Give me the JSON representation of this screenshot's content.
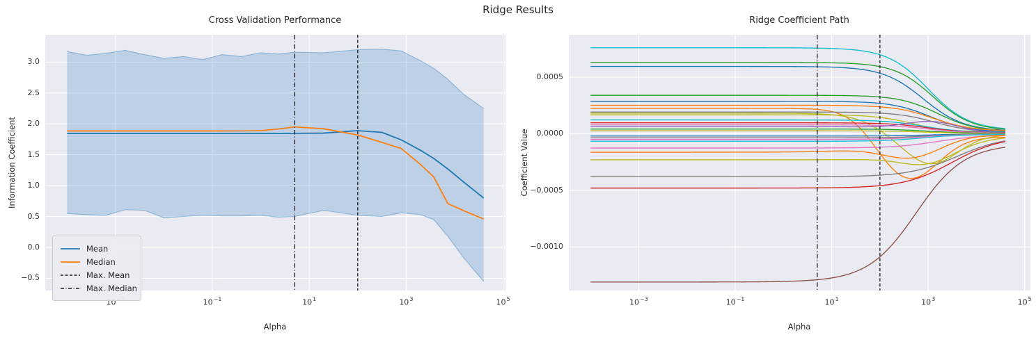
{
  "figure": {
    "title": "Ridge Results"
  },
  "style": {
    "axes_bg": "#eaeaf2",
    "grid_color": "#ffffff",
    "text_color": "#262626",
    "tick_color": "#333333",
    "vline_color": "#1a1a1a"
  },
  "chart_data": [
    {
      "type": "line",
      "title": "Cross Validation Performance",
      "xlabel": "Alpha",
      "ylabel": "Information Coefficient",
      "xscale": "log",
      "grid": true,
      "legend_position": "lower left",
      "x_tick_exponents": [
        -3,
        -1,
        1,
        3,
        5
      ],
      "y_ticks": [
        3.0,
        2.5,
        2.0,
        1.5,
        1.0,
        0.5,
        0.0,
        -0.5
      ],
      "y_tick_decimals": 1,
      "xlim_exp": [
        -4.45,
        5.05
      ],
      "ylim": [
        -0.697,
        3.442
      ],
      "x_exp": [
        -4,
        -3.6,
        -3.2,
        -2.8,
        -2.4,
        -2,
        -1.6,
        -1.2,
        -0.8,
        -0.4,
        0,
        0.35,
        0.7,
        1.3,
        2,
        2.5,
        2.9,
        3.3,
        3.57,
        3.86,
        4.2,
        4.6
      ],
      "series": [
        {
          "name": "Mean",
          "color": "#1f77b4",
          "values": [
            1.845,
            1.845,
            1.845,
            1.845,
            1.845,
            1.845,
            1.845,
            1.845,
            1.845,
            1.845,
            1.845,
            1.845,
            1.846,
            1.85,
            1.89,
            1.862,
            1.74,
            1.57,
            1.44,
            1.27,
            1.05,
            0.8
          ]
        },
        {
          "name": "Median",
          "color": "#ff7f0e",
          "values": [
            1.885,
            1.885,
            1.885,
            1.885,
            1.885,
            1.885,
            1.885,
            1.885,
            1.885,
            1.886,
            1.89,
            1.915,
            1.95,
            1.92,
            1.82,
            1.7,
            1.6,
            1.34,
            1.14,
            0.71,
            0.59,
            0.46
          ]
        }
      ],
      "band": {
        "name": "mean-std-band",
        "fill": "rgba(31,119,180,0.22)",
        "edge": "rgba(31,119,180,0.38)",
        "upper": [
          3.17,
          3.11,
          3.14,
          3.19,
          3.12,
          3.06,
          3.09,
          3.04,
          3.12,
          3.09,
          3.15,
          3.13,
          3.16,
          3.15,
          3.2,
          3.21,
          3.18,
          3.02,
          2.9,
          2.72,
          2.47,
          2.25
        ],
        "lower": [
          0.55,
          0.53,
          0.52,
          0.61,
          0.6,
          0.48,
          0.5,
          0.52,
          0.51,
          0.51,
          0.52,
          0.49,
          0.5,
          0.6,
          0.52,
          0.5,
          0.56,
          0.53,
          0.45,
          0.18,
          -0.18,
          -0.55
        ]
      },
      "vlines": [
        {
          "name": "Max. Mean",
          "style": "dashed",
          "exp": 2.0,
          "alpha_value": 100
        },
        {
          "name": "Max. Median",
          "style": "dashdot",
          "exp": 0.7,
          "alpha_value": 5
        }
      ],
      "legend": {
        "items": [
          {
            "label": "Mean",
            "color": "#1f77b4",
            "dash": "solid"
          },
          {
            "label": "Median",
            "color": "#ff7f0e",
            "dash": "solid"
          },
          {
            "label": "Max. Mean",
            "color": "#1a1a1a",
            "dash": "dashed"
          },
          {
            "label": "Max. Median",
            "color": "#1a1a1a",
            "dash": "dashdot"
          }
        ]
      }
    },
    {
      "type": "line",
      "title": "Ridge Coefficient Path",
      "xlabel": "Alpha",
      "ylabel": "Coefficient Value",
      "xscale": "log",
      "grid": true,
      "x_tick_exponents": [
        -3,
        -1,
        1,
        3,
        5
      ],
      "y_ticks": [
        0.0005,
        0.0,
        -0.0005,
        -0.001
      ],
      "y_tick_decimals": 4,
      "xlim_exp": [
        -4.45,
        5.12
      ],
      "ylim": [
        -0.001385,
        0.000875
      ],
      "x_range_exp": [
        -4,
        4.6
      ],
      "vlines": [
        {
          "name": "Max. Mean",
          "style": "dashed",
          "exp": 2.0,
          "alpha_value": 100
        },
        {
          "name": "Max. Median",
          "style": "dashdot",
          "exp": 0.7,
          "alpha_value": 5
        }
      ],
      "coef_paths": [
        {
          "color": "#17becf",
          "start": 0.00076,
          "end": 3e-05,
          "bend": 3.0,
          "w": 0.42
        },
        {
          "color": "#2ca02c",
          "start": 0.00063,
          "end": 2.7e-05,
          "bend": 3.1,
          "w": 0.4
        },
        {
          "color": "#1f77b4",
          "start": 0.000595,
          "end": 2.2e-05,
          "bend": 2.9,
          "w": 0.42
        },
        {
          "color": "#2ca02c",
          "start": 0.00034,
          "end": 1.8e-05,
          "bend": 3.2,
          "w": 0.4
        },
        {
          "color": "#1f77b4",
          "start": 0.000287,
          "end": 1.5e-05,
          "bend": 3.05,
          "w": 0.4
        },
        {
          "color": "#ff7f0e",
          "start": 0.000252,
          "end": 2.4e-05,
          "bend": 3.1,
          "w": 0.4
        },
        {
          "color": "#ff7f0e",
          "start": 0.000224,
          "end": -3e-05,
          "bend": 1.8,
          "w": 0.3,
          "dip": {
            "amp": -0.00038,
            "center": 2.6,
            "width": 0.6
          }
        },
        {
          "color": "#7f7f7f",
          "start": 0.000192,
          "end": 1e-05,
          "bend": 3.15,
          "w": 0.4
        },
        {
          "color": "#bcbd22",
          "start": 0.000182,
          "end": -1.2e-05,
          "bend": 1.9,
          "w": 0.35,
          "dip": {
            "amp": -0.00026,
            "center": 3.05,
            "width": 0.55
          }
        },
        {
          "color": "#bcbd22",
          "start": 0.000168,
          "end": 8e-06,
          "bend": 2.7,
          "w": 0.4
        },
        {
          "color": "#17becf",
          "start": 0.000122,
          "end": 1.2e-05,
          "bend": 2.9,
          "w": 0.4
        },
        {
          "color": "#d62728",
          "start": 9.7e-05,
          "end": 8e-06,
          "bend": 3.0,
          "w": 0.4
        },
        {
          "color": "#e377c2",
          "start": 7.9e-05,
          "end": 6e-06,
          "bend": 3.0,
          "w": 0.4
        },
        {
          "color": "#9467bd",
          "start": 6.4e-05,
          "end": 5e-06,
          "bend": 2.6,
          "w": 0.4,
          "dip": {
            "amp": 9e-05,
            "center": 3.1,
            "width": 0.55
          }
        },
        {
          "color": "#2ca02c",
          "start": 4.2e-05,
          "end": 4e-06,
          "bend": 3.0,
          "w": 0.4
        },
        {
          "color": "#bcbd22",
          "start": 2.6e-05,
          "end": 2e-06,
          "bend": 3.0,
          "w": 0.4
        },
        {
          "color": "#1f77b4",
          "start": -2e-05,
          "end": -2e-06,
          "bend": 3.0,
          "w": 0.4
        },
        {
          "color": "#7f7f7f",
          "start": -3.6e-05,
          "end": -4e-06,
          "bend": 3.0,
          "w": 0.4
        },
        {
          "color": "#e377c2",
          "start": -5e-05,
          "end": -5e-06,
          "bend": 2.9,
          "w": 0.4
        },
        {
          "color": "#17becf",
          "start": -6.6e-05,
          "end": -6e-06,
          "bend": 2.9,
          "w": 0.4
        },
        {
          "color": "#e377c2",
          "start": -0.000126,
          "end": -1e-05,
          "bend": 3.2,
          "w": 0.45
        },
        {
          "color": "#ff7f0e",
          "start": -0.000163,
          "end": -1e-05,
          "bend": 2.2,
          "w": 0.5,
          "dip": {
            "amp": -0.00016,
            "center": 2.7,
            "width": 0.6
          }
        },
        {
          "color": "#bcbd22",
          "start": -0.00023,
          "end": -1.6e-05,
          "bend": 3.6,
          "w": 0.45,
          "dip": {
            "amp": -8e-05,
            "center": 3.0,
            "width": 0.5
          }
        },
        {
          "color": "#7f7f7f",
          "start": -0.00038,
          "end": -2e-05,
          "bend": 3.6,
          "w": 0.5
        },
        {
          "color": "#d62728",
          "start": -0.00048,
          "end": -2.4e-05,
          "bend": 3.5,
          "w": 0.5
        },
        {
          "color": "#8c564b",
          "start": -0.00131,
          "end": -9e-05,
          "bend": 2.75,
          "w": 0.5
        }
      ]
    }
  ]
}
